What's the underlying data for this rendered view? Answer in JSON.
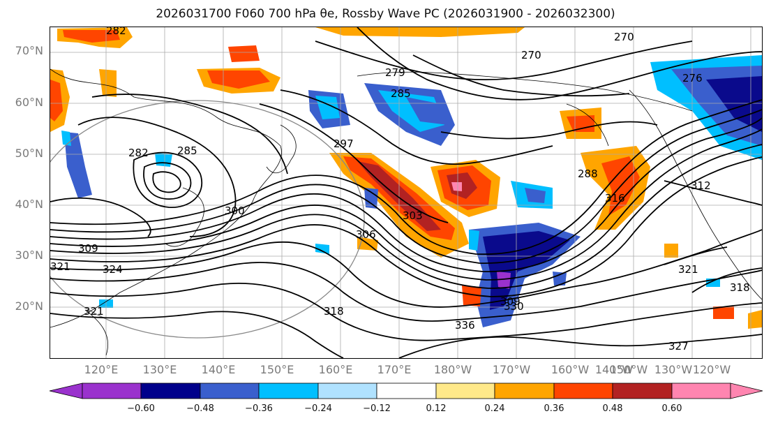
{
  "title": "2026031700 F060 700 hPa θe, Rossby Wave PC (2026031900 - 2026032300)",
  "map": {
    "lat_labels": [
      "70°N",
      "60°N",
      "50°N",
      "40°N",
      "30°N",
      "20°N"
    ],
    "lon_labels": [
      "120°E",
      "130°E",
      "140°E",
      "150°E",
      "160°E",
      "170°E",
      "180°W",
      "170°W",
      "160°W",
      "150°W",
      "140°W",
      "130°W",
      "120°W"
    ],
    "contour_labels": [
      "270",
      "270",
      "276",
      "279",
      "282",
      "282",
      "285",
      "285",
      "288",
      "297",
      "300",
      "303",
      "306",
      "309",
      "309",
      "312",
      "316",
      "318",
      "318",
      "321",
      "321",
      "321",
      "324",
      "327",
      "330",
      "336"
    ],
    "shading_colors": {
      "neg_strong": "#0a0a8c",
      "neg_mid": "#3a5fcd",
      "neg_light": "#00bfff",
      "neg_faint": "#b0e2ff",
      "pos_faint": "#ffe98a",
      "pos_light": "#ffa500",
      "pos_mid": "#ff4500",
      "pos_strong": "#b22222",
      "pos_extreme": "#ff85b0"
    }
  },
  "colorbar": {
    "ticks": [
      "−0.60",
      "−0.48",
      "−0.36",
      "−0.24",
      "−0.12",
      "0.12",
      "0.24",
      "0.36",
      "0.48",
      "0.60"
    ],
    "colors": [
      "#9a32cd",
      "#00008b",
      "#3a5fcd",
      "#00bfff",
      "#b0e2ff",
      "#ffffff",
      "#ffe98a",
      "#ffa500",
      "#ff4500",
      "#b22222",
      "#ff85b0"
    ]
  }
}
